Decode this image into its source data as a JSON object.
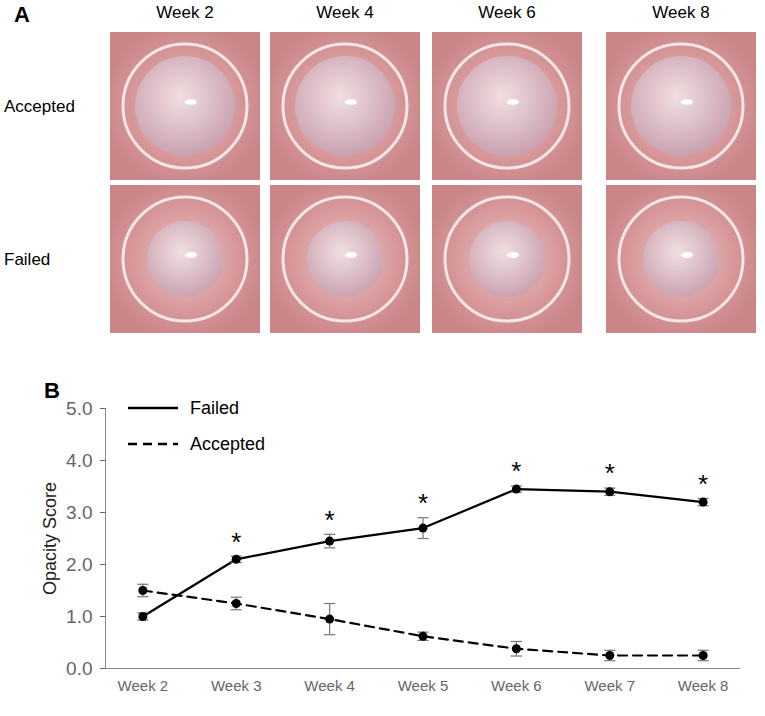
{
  "panel_a": {
    "label": "A",
    "columns": [
      "Week 2",
      "Week 4",
      "Week 6",
      "Week 8"
    ],
    "rows": [
      "Accepted",
      "Failed"
    ]
  },
  "chart_data": {
    "type": "line",
    "title": "B",
    "categories": [
      "Week 2",
      "Week 3",
      "Week 4",
      "Week 5",
      "Week 6",
      "Week 7",
      "Week 8"
    ],
    "ylabel": "Opacity Score",
    "ylim": [
      0,
      5
    ],
    "yticks": [
      0,
      1,
      2,
      3,
      4,
      5
    ],
    "legend": "upper left",
    "series": [
      {
        "name": "Failed",
        "color": "#000000",
        "line_style": "solid",
        "marker": "circle",
        "values": [
          1.0,
          2.1,
          2.45,
          2.7,
          3.45,
          3.4,
          3.2
        ],
        "errors": [
          0.07,
          0.06,
          0.13,
          0.2,
          0.06,
          0.07,
          0.07
        ]
      },
      {
        "name": "Accepted",
        "color": "#000000",
        "line_style": "dashed",
        "marker": "circle",
        "values": [
          1.5,
          1.25,
          0.95,
          0.62,
          0.38,
          0.25,
          0.25
        ],
        "errors": [
          0.12,
          0.12,
          0.3,
          0.08,
          0.14,
          0.1,
          0.1
        ]
      }
    ],
    "annotations": [
      {
        "x": "Week 3",
        "text": "*"
      },
      {
        "x": "Week 4",
        "text": "*"
      },
      {
        "x": "Week 5",
        "text": "*"
      },
      {
        "x": "Week 6",
        "text": "*"
      },
      {
        "x": "Week 7",
        "text": "*"
      },
      {
        "x": "Week 8",
        "text": "*"
      }
    ]
  }
}
